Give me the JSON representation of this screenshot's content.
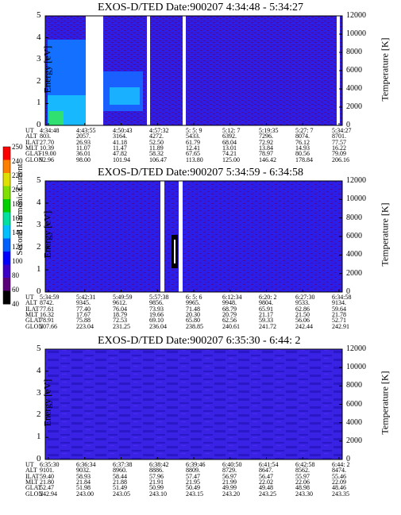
{
  "panels": [
    {
      "title": "EXOS-D/TED   Date:900207  4:34:48 - 5:34:27",
      "ylabel_left": "Energy [eV]",
      "ylabel_right": "Temperature [K]",
      "energy_ticks": [
        "0",
        "1",
        "2",
        "3",
        "4",
        "5"
      ],
      "temp_ticks": [
        "0",
        "2000",
        "4000",
        "6000",
        "8000",
        "10000",
        "12000"
      ],
      "row_labels": [
        "UT",
        "ALT",
        "ILAT",
        "MLT",
        "GLAT",
        "GLON"
      ],
      "columns": [
        [
          "4:34:48",
          "803.",
          "27.70",
          "10.39",
          "-19.00",
          "92.96"
        ],
        [
          "4:43:55",
          "2057.",
          "26.93",
          "11.07",
          "36.01",
          "98.00"
        ],
        [
          "4:50:43",
          "3164.",
          "41.18",
          "11.47",
          "47.82",
          "101.94"
        ],
        [
          "4:57:32",
          "4272.",
          "52.50",
          "11.89",
          "58.32",
          "106.47"
        ],
        [
          "5: 5: 9",
          "5433.",
          "61.79",
          "12.41",
          "67.65",
          "113.80"
        ],
        [
          "5:12: 7",
          "6392.",
          "68.04",
          "13.01",
          "74.21",
          "125.00"
        ],
        [
          "5:19:35",
          "7296.",
          "72.92",
          "13.84",
          "78.97",
          "146.42"
        ],
        [
          "5:27: 7",
          "8074.",
          "76.12",
          "14.93",
          "80.56",
          "178.84"
        ],
        [
          "5:34:27",
          "8701.",
          "77.57",
          "16.22",
          "79.09",
          "206.16"
        ]
      ]
    },
    {
      "title": "EXOS-D/TED   Date:900207  5:34:59 - 6:34:58",
      "ylabel_left": "Energy [eV]",
      "ylabel_right": "Temperature [K]",
      "energy_ticks": [
        "0",
        "1",
        "2",
        "3",
        "4",
        "5"
      ],
      "temp_ticks": [
        "0",
        "2000",
        "4000",
        "6000",
        "8000",
        "10000",
        "12000"
      ],
      "row_labels": [
        "UT",
        "ALT",
        "ILAT",
        "MLT",
        "GLAT",
        "GLON"
      ],
      "columns": [
        [
          "5:34:59",
          "8742.",
          "77.61",
          "16.32",
          "78.91",
          "207.66"
        ],
        [
          "5:42:31",
          "9345.",
          "77.40",
          "17.67",
          "75.88",
          "223.04"
        ],
        [
          "5:49:59",
          "9612.",
          "76.04",
          "18.79",
          "72.53",
          "231.25"
        ],
        [
          "5:57:38",
          "9856.",
          "73.93",
          "19.66",
          "69.10",
          "236.04"
        ],
        [
          "6: 5: 6",
          "9965.",
          "71.48",
          "20.30",
          "65.80",
          "238.85"
        ],
        [
          "6:12:34",
          "9948.",
          "68.79",
          "20.79",
          "62.56",
          "240.61"
        ],
        [
          "6:20: 2",
          "9804.",
          "65.91",
          "21.17",
          "59.33",
          "241.72"
        ],
        [
          "6:27:30",
          "9533.",
          "62.86",
          "21.50",
          "56.06",
          "242.44"
        ],
        [
          "6:34:58",
          "9134.",
          "59.64",
          "21.78",
          "52.71",
          "242.91"
        ]
      ]
    },
    {
      "title": "EXOS-D/TED   Date:900207  6:35:30 - 6:44: 2",
      "ylabel_left": "Energy [eV]",
      "ylabel_right": "Temperature [K]",
      "energy_ticks": [
        "0",
        "1",
        "2",
        "3",
        "4",
        "5"
      ],
      "temp_ticks": [
        "0",
        "2000",
        "4000",
        "6000",
        "8000",
        "10000",
        "12000"
      ],
      "row_labels": [
        "UT",
        "ALT",
        "ILAT",
        "MLT",
        "GLAT",
        "GLON"
      ],
      "columns": [
        [
          "6:35:30",
          "9101.",
          "59.40",
          "21.80",
          "52.47",
          "242.94"
        ],
        [
          "6:36:34",
          "9032.",
          "58.93",
          "21.84",
          "51.98",
          "243.00"
        ],
        [
          "6:37:38",
          "8960.",
          "58.44",
          "21.88",
          "51.49",
          "243.05"
        ],
        [
          "6:38:42",
          "8886.",
          "57.96",
          "21.91",
          "50.99",
          "243.10"
        ],
        [
          "6:39:46",
          "8809.",
          "57.47",
          "21.95",
          "50.49",
          "243.15"
        ],
        [
          "6:40:50",
          "8729.",
          "56.97",
          "21.99",
          "49.99",
          "243.20"
        ],
        [
          "6:41:54",
          "8647.",
          "56.47",
          "22.02",
          "49.48",
          "243.25"
        ],
        [
          "6:42:58",
          "8562.",
          "55.97",
          "22.06",
          "48.98",
          "243.30"
        ],
        [
          "6:44: 2",
          "8474.",
          "55.46",
          "22.09",
          "48.46",
          "243.35"
        ]
      ]
    }
  ],
  "colorbar": {
    "label": "Second Harmonic Current",
    "ticks": [
      "40",
      "60",
      "80",
      "100",
      "120",
      "140",
      "160",
      "180",
      "200",
      "220",
      "240",
      "250"
    ],
    "colors": [
      "#000000",
      "#5a0078",
      "#3a00c8",
      "#0000ff",
      "#0060ff",
      "#00c0ff",
      "#00e0a0",
      "#00d000",
      "#80e000",
      "#e0e000",
      "#ff8000",
      "#ff0000"
    ]
  },
  "chart_data": [
    {
      "type": "heatmap",
      "title": "EXOS-D/TED   Date:900207  4:34:48 - 5:34:27",
      "ylabel": "Energy [eV]",
      "ylabel_right": "Temperature [K]",
      "ylim": [
        0,
        5
      ],
      "ylim_right": [
        0,
        12000
      ],
      "x": [
        "4:34:48",
        "4:43:55",
        "4:50:43",
        "4:57:32",
        "5: 5: 9",
        "5:12: 7",
        "5:19:35",
        "5:27: 7",
        "5:34:27"
      ]
    },
    {
      "type": "heatmap",
      "title": "EXOS-D/TED   Date:900207  5:34:59 - 6:34:58",
      "ylabel": "Energy [eV]",
      "ylabel_right": "Temperature [K]",
      "ylim": [
        0,
        5
      ],
      "ylim_right": [
        0,
        12000
      ],
      "x": [
        "5:34:59",
        "5:42:31",
        "5:49:59",
        "5:57:38",
        "6: 5: 6",
        "6:12:34",
        "6:20: 2",
        "6:27:30",
        "6:34:58"
      ]
    },
    {
      "type": "heatmap",
      "title": "EXOS-D/TED   Date:900207  6:35:30 - 6:44: 2",
      "ylabel": "Energy [eV]",
      "ylabel_right": "Temperature [K]",
      "ylim": [
        0,
        5
      ],
      "ylim_right": [
        0,
        12000
      ],
      "x": [
        "6:35:30",
        "6:36:34",
        "6:37:38",
        "6:38:42",
        "6:39:46",
        "6:40:50",
        "6:41:54",
        "6:42:58",
        "6:44: 2"
      ]
    }
  ]
}
